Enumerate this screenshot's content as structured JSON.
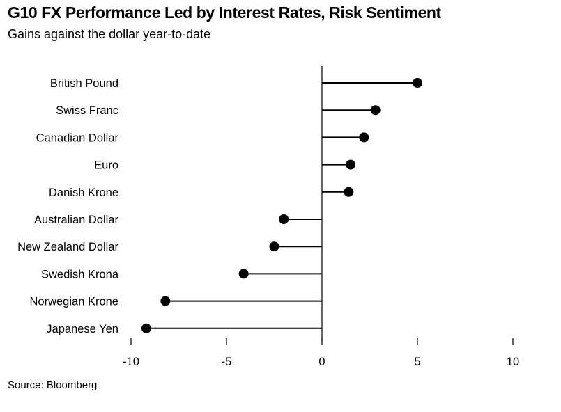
{
  "chart_data": {
    "type": "lollipop",
    "title": "G10 FX Performance Led by Interest Rates, Risk Sentiment",
    "subtitle": "Gains against the dollar year-to-date",
    "source": "Source: Bloomberg",
    "categories": [
      "British Pound",
      "Swiss Franc",
      "Canadian Dollar",
      "Euro",
      "Danish Krone",
      "Australian Dollar",
      "New Zealand Dollar",
      "Swedish Krona",
      "Norwegian Krone",
      "Japanese Yen"
    ],
    "values": [
      5.0,
      2.8,
      2.2,
      1.5,
      1.4,
      -2.0,
      -2.5,
      -4.1,
      -8.2,
      -9.2
    ],
    "xlim": [
      -10,
      10
    ],
    "xticks": [
      -10,
      -5,
      0,
      5,
      10
    ],
    "xtick_labels": [
      "-10",
      "-5",
      "0",
      "5",
      "10"
    ],
    "grid": false,
    "legend": "none",
    "colors": {
      "marker": "#000000",
      "stem": "#000000",
      "axis": "#000000"
    }
  }
}
